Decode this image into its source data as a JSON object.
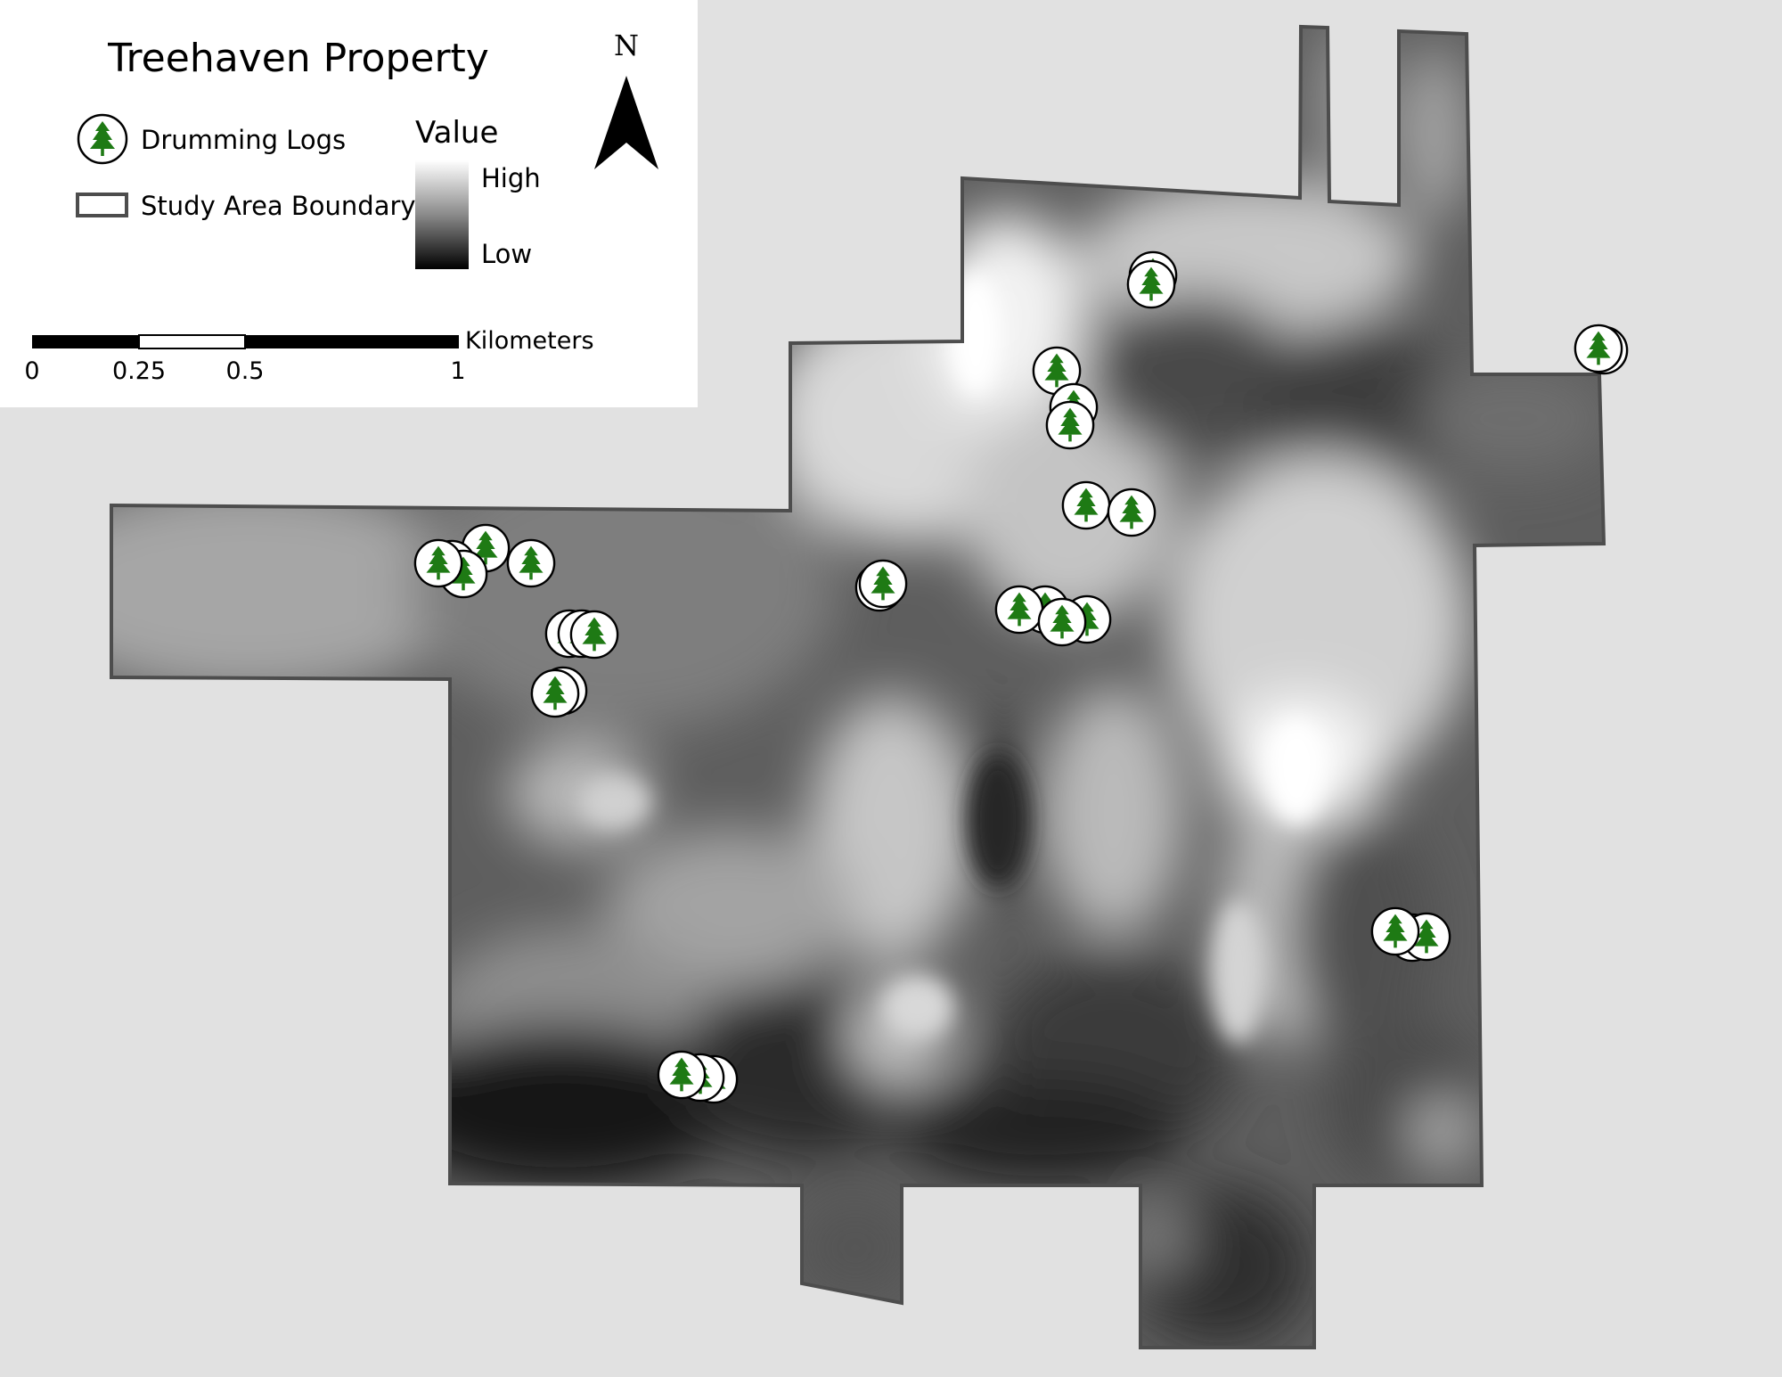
{
  "map": {
    "title": "Treehaven Property",
    "legend": {
      "drumming_logs_label": "Drumming Logs",
      "study_area_label": "Study Area Boundary",
      "value_title": "Value",
      "value_high": "High",
      "value_low": "Low",
      "drumming_icon": "pine-tree-icon"
    },
    "north_arrow_label": "N",
    "scale_bar": {
      "unit": "Kilometers",
      "ticks": [
        "0",
        "0.25",
        "0.5",
        "1"
      ]
    },
    "colors": {
      "background": "#e1e1e1",
      "boundary": "#4d4d4d",
      "tree": "#1e7a14",
      "marker_fill": "#ffffff",
      "high": "#ffffff",
      "low": "#000000"
    }
  }
}
